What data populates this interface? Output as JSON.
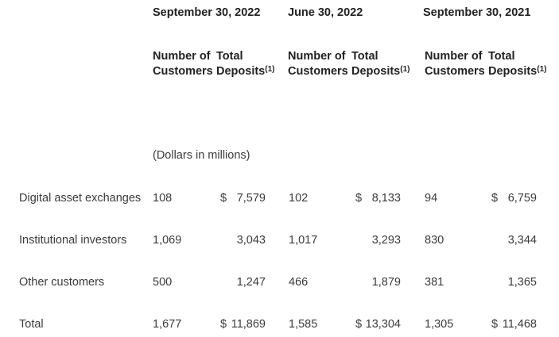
{
  "table": {
    "unit_note": "(Dollars in millions)",
    "column_groups": [
      {
        "date": "September 30, 2022"
      },
      {
        "date": "June 30, 2022"
      },
      {
        "date": "September 30, 2021"
      }
    ],
    "subheader": {
      "customers_line1": "Number of",
      "customers_line2": "Customers",
      "deposits_line1": "Total",
      "deposits_line2": "Deposits",
      "footnote_marker": "(1)"
    },
    "rows": [
      {
        "label": "Digital asset exchanges",
        "cells": [
          {
            "customers": "108",
            "currency": "$",
            "deposits": "7,579"
          },
          {
            "customers": "102",
            "currency": "$",
            "deposits": "8,133"
          },
          {
            "customers": "94",
            "currency": "$",
            "deposits": "6,759"
          }
        ]
      },
      {
        "label": "Institutional investors",
        "cells": [
          {
            "customers": "1,069",
            "currency": "",
            "deposits": "3,043"
          },
          {
            "customers": "1,017",
            "currency": "",
            "deposits": "3,293"
          },
          {
            "customers": "830",
            "currency": "",
            "deposits": "3,344"
          }
        ]
      },
      {
        "label": "Other customers",
        "cells": [
          {
            "customers": "500",
            "currency": "",
            "deposits": "1,247"
          },
          {
            "customers": "466",
            "currency": "",
            "deposits": "1,879"
          },
          {
            "customers": "381",
            "currency": "",
            "deposits": "1,365"
          }
        ]
      },
      {
        "label": "Total",
        "cells": [
          {
            "customers": "1,677",
            "currency": "$",
            "deposits": "11,869"
          },
          {
            "customers": "1,585",
            "currency": "$",
            "deposits": "13,304"
          },
          {
            "customers": "1,305",
            "currency": "$",
            "deposits": "11,468"
          }
        ]
      }
    ],
    "colors": {
      "background": "#ffffff",
      "text": "#3b3b3b",
      "heading_text": "#222222"
    }
  }
}
